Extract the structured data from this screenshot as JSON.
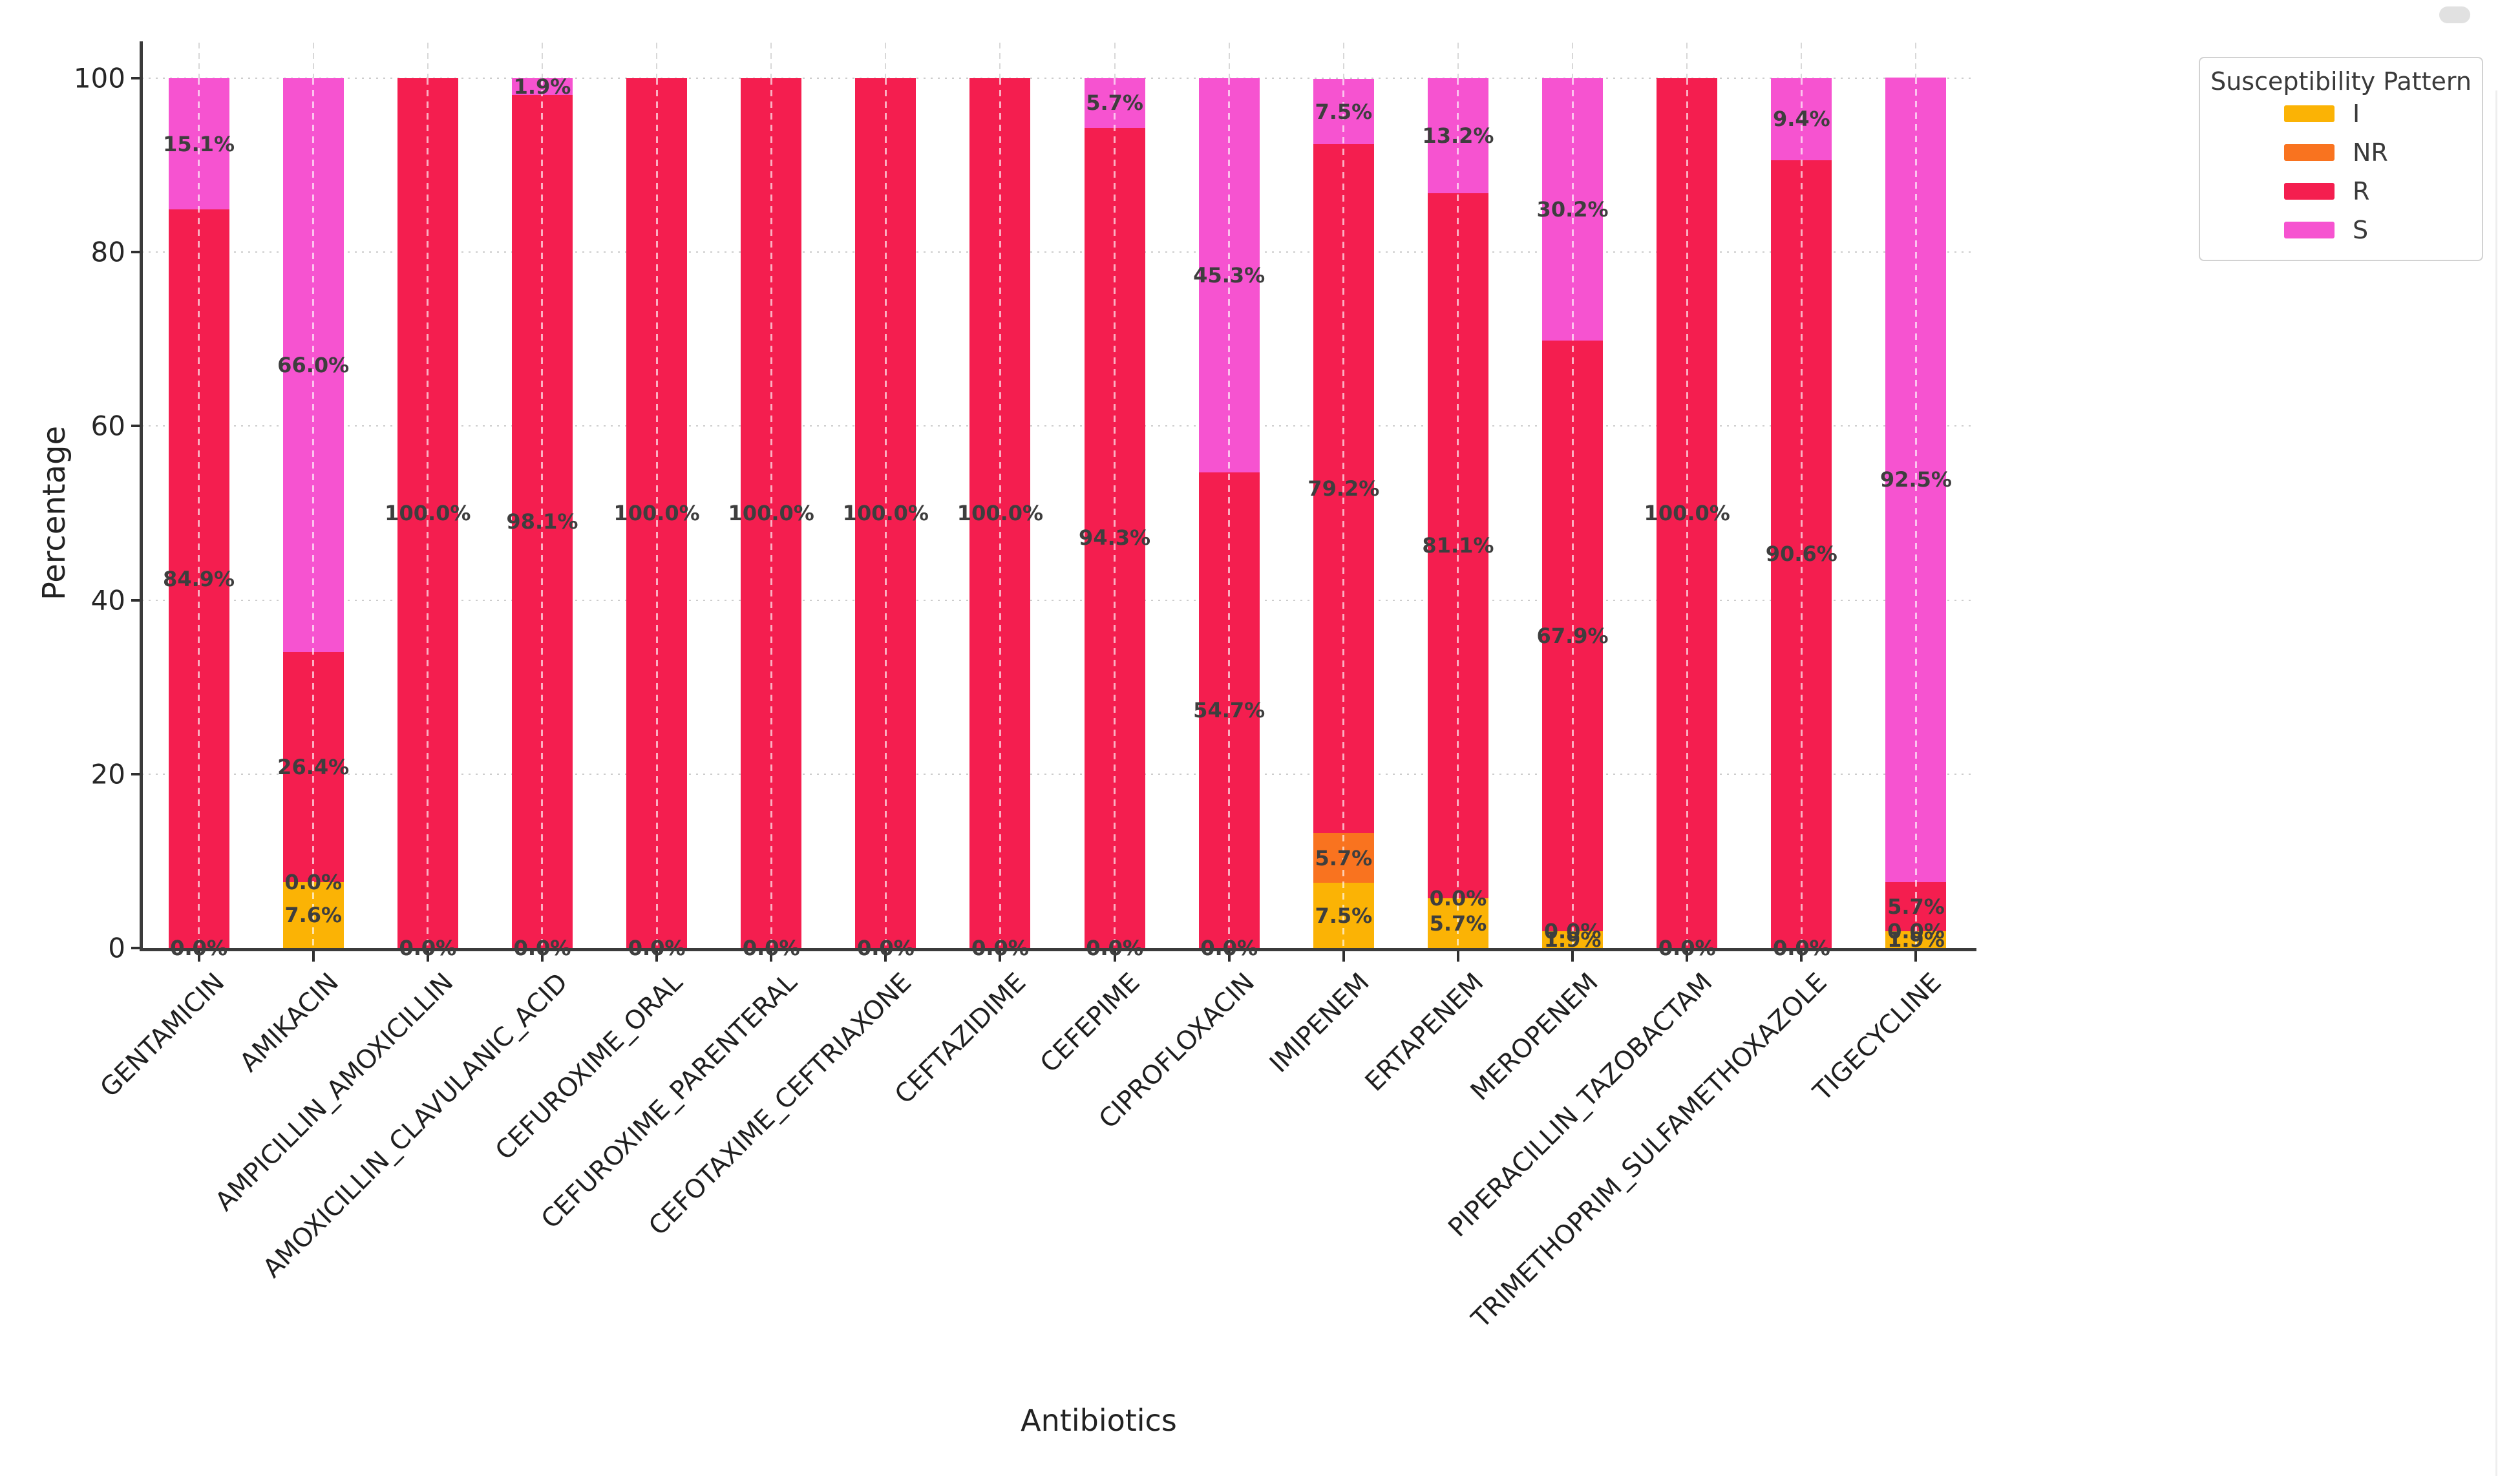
{
  "figure": {
    "background": "#ffffff"
  },
  "axes": {
    "x_title": "Antibiotics",
    "y_title": "Percentage",
    "y_tick_labels": [
      "0",
      "20",
      "40",
      "60",
      "80",
      "100"
    ]
  },
  "legend": {
    "title": "Susceptibility Pattern",
    "items": [
      {
        "label": "I",
        "color": "#FBB305"
      },
      {
        "label": "NR",
        "color": "#F9731F"
      },
      {
        "label": "R",
        "color": "#F41E4F"
      },
      {
        "label": "S",
        "color": "#F653D0"
      }
    ]
  },
  "chart_data": {
    "type": "bar",
    "stacked": true,
    "orientation": "vertical",
    "title": "",
    "xlabel": "Antibiotics",
    "ylabel": "Percentage",
    "ylim": [
      0,
      100
    ],
    "y_ticks": [
      0,
      20,
      40,
      60,
      80,
      100
    ],
    "grid": true,
    "legend_title": "Susceptibility Pattern",
    "legend_position": "outside-upper-right",
    "value_label_suffix": "%",
    "label_rules": {
      "always_labeled": [
        "I",
        "NR",
        "R"
      ],
      "labeled_only_if_positive": [
        "S"
      ]
    },
    "categories": [
      "GENTAMICIN",
      "AMIKACIN",
      "AMPICILLIN_AMOXICILLIN",
      "AMOXICILLIN_CLAVULANIC_ACID",
      "CEFUROXIME_ORAL",
      "CEFUROXIME_PARENTERAL",
      "CEFOTAXIME_CEFTRIAXONE",
      "CEFTAZIDIME",
      "CEFEPIME",
      "CIPROFLOXACIN",
      "IMIPENEM",
      "ERTAPENEM",
      "MEROPENEM",
      "PIPERACILLIN_TAZOBACTAM",
      "TRIMETHOPRIM_SULFAMETHOXAZOLE",
      "TIGECYCLINE"
    ],
    "series": [
      {
        "name": "I",
        "color": "#FBB305",
        "values": [
          0.0,
          7.6,
          0.0,
          0.0,
          0.0,
          0.0,
          0.0,
          0.0,
          0.0,
          0.0,
          7.5,
          5.7,
          1.9,
          0.0,
          0.0,
          1.9
        ]
      },
      {
        "name": "NR",
        "color": "#F9731F",
        "values": [
          0.0,
          0.0,
          0.0,
          0.0,
          0.0,
          0.0,
          0.0,
          0.0,
          0.0,
          0.0,
          5.7,
          0.0,
          0.0,
          0.0,
          0.0,
          0.0
        ]
      },
      {
        "name": "R",
        "color": "#F41E4F",
        "values": [
          84.9,
          26.4,
          100.0,
          98.1,
          100.0,
          100.0,
          100.0,
          100.0,
          94.3,
          54.7,
          79.2,
          81.1,
          67.9,
          100.0,
          90.6,
          5.7
        ]
      },
      {
        "name": "S",
        "color": "#F653D0",
        "values": [
          15.1,
          66.0,
          0.0,
          1.9,
          0.0,
          0.0,
          0.0,
          0.0,
          5.7,
          45.3,
          7.5,
          13.2,
          30.2,
          0.0,
          9.4,
          92.5
        ]
      }
    ]
  }
}
